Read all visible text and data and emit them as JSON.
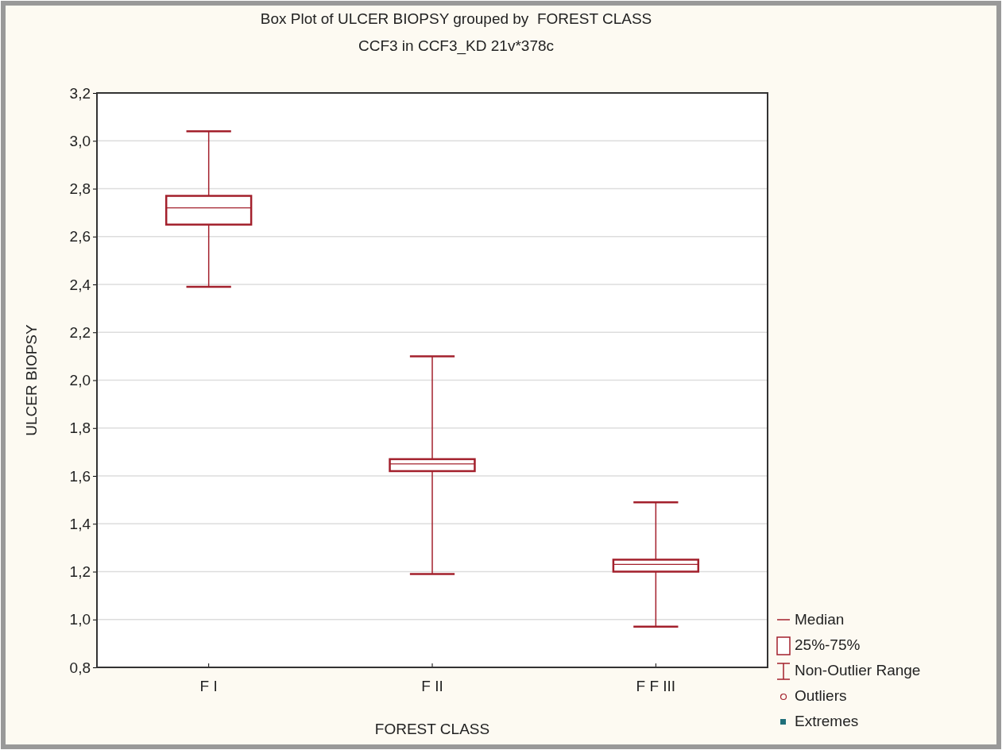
{
  "chart_data": {
    "type": "box",
    "title": "Box Plot of ULCER BIOPSY grouped by  FOREST CLASS",
    "subtitle": "CCF3 in CCF3_KD 21v*378c",
    "xlabel": "FOREST CLASS",
    "ylabel": "ULCER BIOPSY",
    "categories": [
      "F I",
      "F II",
      "F F III"
    ],
    "boxes": [
      {
        "low": 2.39,
        "q1": 2.65,
        "median": 2.72,
        "q3": 2.77,
        "high": 3.04
      },
      {
        "low": 1.19,
        "q1": 1.62,
        "median": 1.65,
        "q3": 1.67,
        "high": 2.1
      },
      {
        "low": 0.97,
        "q1": 1.2,
        "median": 1.23,
        "q3": 1.25,
        "high": 1.49
      }
    ],
    "color": "#a3202c",
    "ylim": [
      0.8,
      3.2
    ],
    "yticks": [
      {
        "value": 0.8,
        "label": "0,8"
      },
      {
        "value": 1.0,
        "label": "1,0"
      },
      {
        "value": 1.2,
        "label": "1,2"
      },
      {
        "value": 1.4,
        "label": "1,4"
      },
      {
        "value": 1.6,
        "label": "1,6"
      },
      {
        "value": 1.8,
        "label": "1,8"
      },
      {
        "value": 2.0,
        "label": "2,0"
      },
      {
        "value": 2.2,
        "label": "2,2"
      },
      {
        "value": 2.4,
        "label": "2,4"
      },
      {
        "value": 2.6,
        "label": "2,6"
      },
      {
        "value": 2.8,
        "label": "2,8"
      },
      {
        "value": 3.0,
        "label": "3,0"
      },
      {
        "value": 3.2,
        "label": "3,2"
      }
    ],
    "grid": "y",
    "annotations": [
      "Median",
      "25%-75%",
      "Non-Outlier Range",
      "Outliers",
      "Extremes"
    ]
  }
}
